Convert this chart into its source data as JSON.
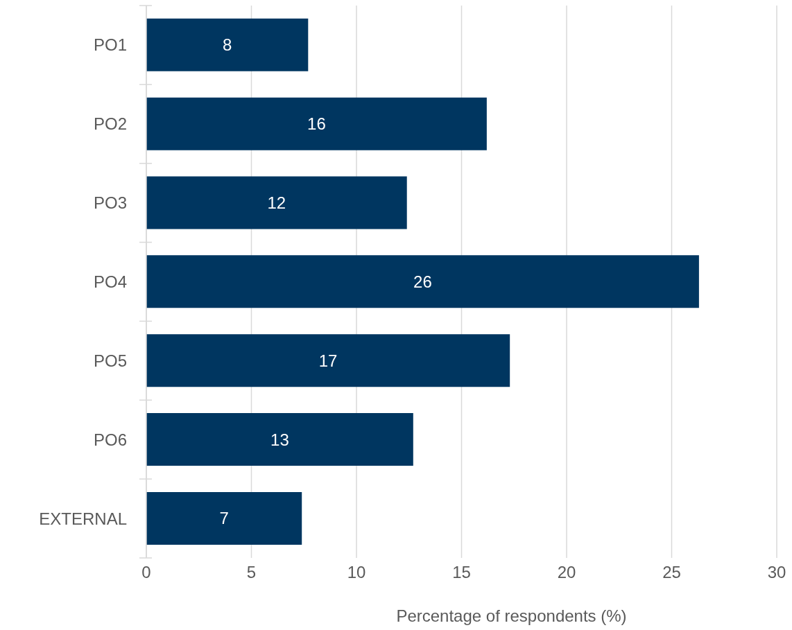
{
  "chart_data": {
    "type": "bar",
    "orientation": "horizontal",
    "xlabel": "Percentage of respondents (%)",
    "categories": [
      "PO1",
      "PO2",
      "PO3",
      "PO4",
      "PO5",
      "PO6",
      "EXTERNAL"
    ],
    "values": [
      7.7,
      16.2,
      12.4,
      26.3,
      17.3,
      12.7,
      7.4
    ],
    "value_labels": [
      "8",
      "16",
      "12",
      "26",
      "17",
      "13",
      "7"
    ],
    "color": "#003660",
    "xlim": [
      0,
      30
    ],
    "xticks": [
      0,
      5,
      10,
      15,
      20,
      25,
      30
    ],
    "grid": "x"
  }
}
